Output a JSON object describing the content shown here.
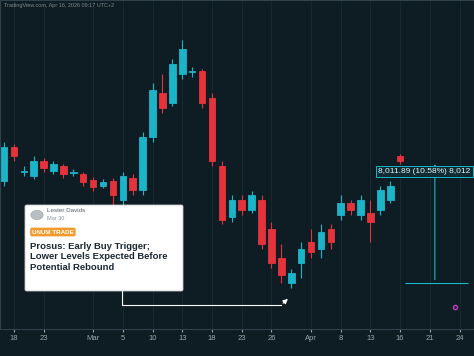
{
  "chart_data": {
    "type": "candlestick",
    "header": "TradingView.com, Apr 16, 2026 09:17 UTC+2",
    "categories": [
      null,
      "18",
      null,
      null,
      "23",
      null,
      null,
      null,
      null,
      "Mar",
      null,
      null,
      "5",
      null,
      null,
      "10",
      null,
      null,
      "13",
      null,
      null,
      "18",
      null,
      null,
      "23",
      null,
      null,
      "26",
      null,
      null,
      null,
      "Apr",
      null,
      null,
      "8",
      null,
      null,
      "13",
      null,
      null,
      "16",
      null,
      null,
      "21",
      null,
      null,
      "24"
    ],
    "open": [
      7889,
      8104,
      7944,
      7920,
      8012,
      7950,
      7981,
      7938,
      7932,
      7895,
      7858,
      7889,
      7766,
      7907,
      7828,
      8165,
      8442,
      8380,
      8565,
      8577,
      8583,
      8411,
      7981,
      7662,
      7766,
      7705,
      7766,
      7582,
      7398,
      7244,
      7367,
      7502,
      7459,
      7582,
      7674,
      7748,
      7674,
      7686,
      7705,
      7766,
      8043,
      null,
      null,
      null,
      null,
      null,
      null
    ],
    "high": [
      8135,
      8122,
      7981,
      8043,
      8030,
      8012,
      7993,
      7963,
      7944,
      7914,
      7901,
      7907,
      7944,
      7932,
      8196,
      8503,
      8565,
      8657,
      8779,
      8607,
      8595,
      8442,
      8012,
      7797,
      7797,
      7822,
      7797,
      7625,
      7490,
      7330,
      7502,
      7582,
      7613,
      7613,
      7797,
      7766,
      7797,
      7766,
      7858,
      7889,
      8055,
      null,
      null,
      null,
      null,
      null,
      null
    ],
    "low": [
      7858,
      8012,
      7920,
      7901,
      7944,
      7932,
      7907,
      7920,
      7858,
      7822,
      7840,
      7736,
      7736,
      7797,
      7797,
      8135,
      8319,
      8362,
      8534,
      8546,
      8350,
      7981,
      7613,
      7625,
      7674,
      7686,
      7459,
      7337,
      7244,
      7208,
      7275,
      7398,
      7398,
      7459,
      7643,
      7674,
      7643,
      7502,
      7674,
      7748,
      7993,
      null,
      null,
      null,
      null,
      null,
      null
    ],
    "close": [
      8104,
      8043,
      7950,
      8012,
      7969,
      7993,
      7932,
      7944,
      7883,
      7846,
      7883,
      7797,
      7920,
      7828,
      8165,
      8460,
      8350,
      8626,
      8718,
      8583,
      8380,
      8012,
      7643,
      7766,
      7705,
      7797,
      7490,
      7367,
      7293,
      7306,
      7459,
      7441,
      7564,
      7502,
      7748,
      7705,
      7766,
      7625,
      7828,
      7858,
      8011.89,
      null,
      null,
      null,
      null,
      null,
      null
    ],
    "ylim": [
      6950,
      9030
    ],
    "yticks": [],
    "grid": true,
    "tick_labels": "x",
    "measure": {
      "from": 7245.3,
      "to": 8011.89,
      "label": "8,011.89 (10.58%) 8,012"
    },
    "annotation": {
      "author": "Lester Davids",
      "date": "Mar 30",
      "tag": "UNUM TRADE",
      "title": "Prosus: Early Buy Trigger; Lower Levels Expected Before Potential Rebound"
    }
  }
}
